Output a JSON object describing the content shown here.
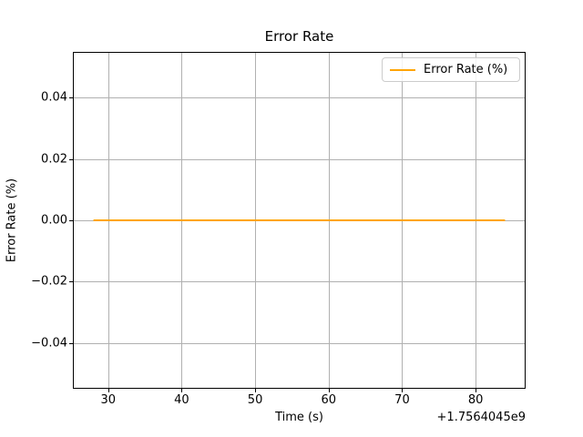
{
  "chart_data": {
    "type": "line",
    "title": "Error Rate",
    "xlabel": "Time (s)",
    "ylabel": "Error Rate (%)",
    "x_offset_label": "+1.7564045e9",
    "xlim": [
      25.2,
      86.8
    ],
    "ylim": [
      -0.055,
      0.055
    ],
    "grid": true,
    "xticks": [
      {
        "value": 30,
        "label": "30"
      },
      {
        "value": 40,
        "label": "40"
      },
      {
        "value": 50,
        "label": "50"
      },
      {
        "value": 60,
        "label": "60"
      },
      {
        "value": 70,
        "label": "70"
      },
      {
        "value": 80,
        "label": "80"
      }
    ],
    "yticks": [
      {
        "value": 0.04,
        "label": "0.04"
      },
      {
        "value": 0.02,
        "label": "0.02"
      },
      {
        "value": 0.0,
        "label": "0.00"
      },
      {
        "value": -0.02,
        "label": "−0.02"
      },
      {
        "value": -0.04,
        "label": "−0.04"
      }
    ],
    "legend": {
      "position": "upper right",
      "entries": [
        {
          "label": "Error Rate (%)",
          "color": "#FFA500"
        }
      ]
    },
    "series": [
      {
        "name": "Error Rate (%)",
        "color": "#FFA500",
        "x": [
          28,
          84
        ],
        "y": [
          0,
          0
        ]
      }
    ],
    "colors": {
      "line": "#FFA500",
      "grid": "#b0b0b0",
      "spine": "#000000",
      "tick": "#000000",
      "background": "#ffffff",
      "legend_border": "#cccccc"
    }
  }
}
